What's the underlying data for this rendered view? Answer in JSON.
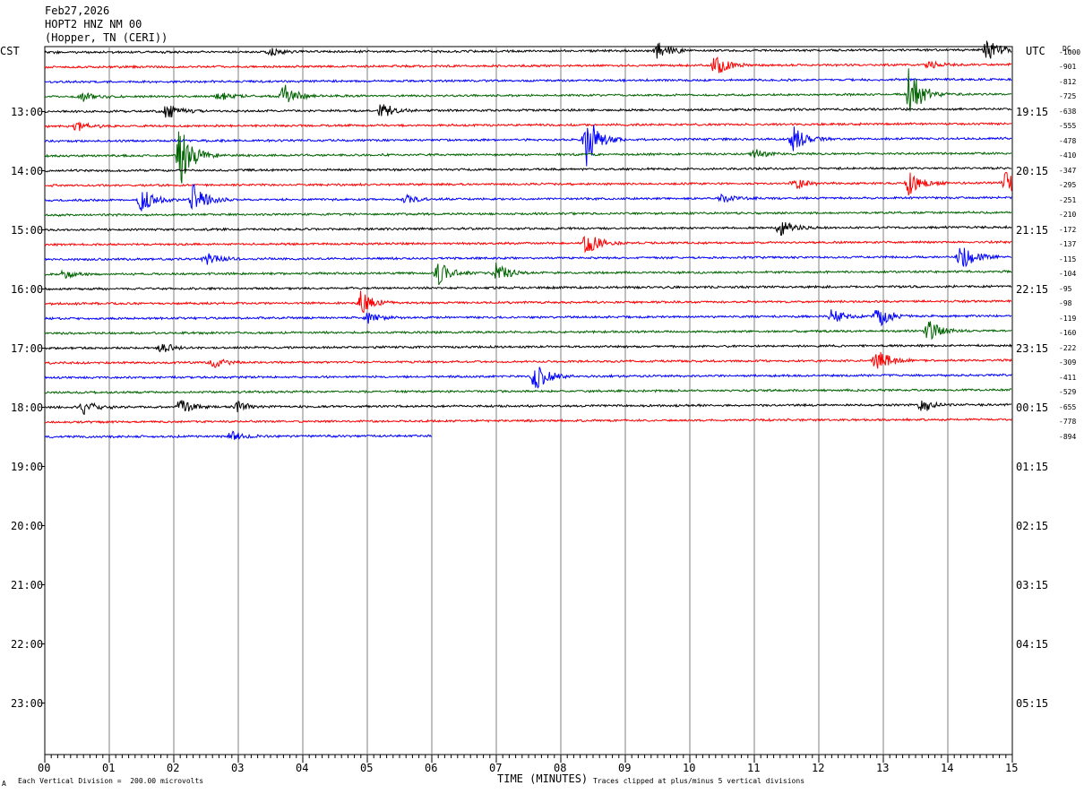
{
  "header": {
    "date": "Feb27,2026",
    "station": "HOPT2 HNZ NM 00",
    "location": "(Hopper, TN (CERI))"
  },
  "axes": {
    "left_label": "CST",
    "right_label": "UTC",
    "dc_label": "DC",
    "x_title": "TIME (MINUTES)",
    "x_ticks": [
      "00",
      "01",
      "02",
      "03",
      "04",
      "05",
      "06",
      "07",
      "08",
      "09",
      "10",
      "11",
      "12",
      "13",
      "14",
      "15"
    ],
    "left_hours": [
      "13:00",
      "14:00",
      "15:00",
      "16:00",
      "17:00",
      "18:00",
      "19:00",
      "20:00",
      "21:00",
      "22:00",
      "23:00"
    ],
    "right_hours": [
      "19:15",
      "20:15",
      "21:15",
      "22:15",
      "23:15",
      "00:15",
      "01:15",
      "02:15",
      "03:15",
      "04:15",
      "05:15"
    ]
  },
  "footer": {
    "scale_note": "Each Vertical Division =  200.00 microvolts",
    "clip_note": "Traces clipped at plus/minus 5 vertical divisions",
    "mark": "A"
  },
  "colors": {
    "cycle": [
      "#000000",
      "#ff0000",
      "#0000ff",
      "#006400"
    ],
    "grid": "#808080"
  },
  "chart_data": {
    "type": "line",
    "x_range": [
      0,
      15
    ],
    "trace_count": 27,
    "last_trace_end_minute": 6.0,
    "dc_offsets": [
      "-1000",
      "-901",
      "-812",
      "-725",
      "-638",
      "-555",
      "-478",
      "-410",
      "-347",
      "-295",
      "-251",
      "-210",
      "-172",
      "-137",
      "-115",
      "-104",
      "-95",
      "-98",
      "-119",
      "-160",
      "-222",
      "-309",
      "-411",
      "-529",
      "-655",
      "-778",
      "-894"
    ],
    "events": [
      {
        "trace": 0,
        "minute": 3.5,
        "amp": 0.3
      },
      {
        "trace": 0,
        "minute": 9.5,
        "amp": 0.8
      },
      {
        "trace": 0,
        "minute": 14.6,
        "amp": 1.0
      },
      {
        "trace": 1,
        "minute": 10.4,
        "amp": 0.9
      },
      {
        "trace": 1,
        "minute": 13.7,
        "amp": 0.3
      },
      {
        "trace": 3,
        "minute": 0.6,
        "amp": 0.3
      },
      {
        "trace": 3,
        "minute": 2.7,
        "amp": 0.3
      },
      {
        "trace": 3,
        "minute": 3.7,
        "amp": 1.0
      },
      {
        "trace": 3,
        "minute": 13.4,
        "amp": 2.2
      },
      {
        "trace": 4,
        "minute": 1.9,
        "amp": 0.6
      },
      {
        "trace": 4,
        "minute": 5.2,
        "amp": 0.7
      },
      {
        "trace": 5,
        "minute": 0.5,
        "amp": 0.4
      },
      {
        "trace": 6,
        "minute": 8.4,
        "amp": 2.0
      },
      {
        "trace": 6,
        "minute": 11.6,
        "amp": 1.0
      },
      {
        "trace": 7,
        "minute": 2.1,
        "amp": 2.5
      },
      {
        "trace": 7,
        "minute": 11.0,
        "amp": 0.4
      },
      {
        "trace": 9,
        "minute": 11.6,
        "amp": 0.5
      },
      {
        "trace": 9,
        "minute": 13.4,
        "amp": 1.0
      },
      {
        "trace": 9,
        "minute": 14.9,
        "amp": 1.0
      },
      {
        "trace": 10,
        "minute": 1.5,
        "amp": 0.9
      },
      {
        "trace": 10,
        "minute": 2.3,
        "amp": 1.2
      },
      {
        "trace": 10,
        "minute": 5.6,
        "amp": 0.3
      },
      {
        "trace": 10,
        "minute": 10.5,
        "amp": 0.3
      },
      {
        "trace": 12,
        "minute": 11.4,
        "amp": 0.6
      },
      {
        "trace": 13,
        "minute": 8.4,
        "amp": 0.9
      },
      {
        "trace": 14,
        "minute": 2.5,
        "amp": 0.5
      },
      {
        "trace": 14,
        "minute": 14.2,
        "amp": 1.1
      },
      {
        "trace": 15,
        "minute": 0.3,
        "amp": 0.3
      },
      {
        "trace": 15,
        "minute": 6.1,
        "amp": 0.9
      },
      {
        "trace": 15,
        "minute": 7.0,
        "amp": 0.8
      },
      {
        "trace": 17,
        "minute": 4.9,
        "amp": 0.9
      },
      {
        "trace": 18,
        "minute": 5.0,
        "amp": 0.4
      },
      {
        "trace": 18,
        "minute": 12.2,
        "amp": 0.5
      },
      {
        "trace": 18,
        "minute": 12.9,
        "amp": 1.0
      },
      {
        "trace": 19,
        "minute": 13.7,
        "amp": 0.8
      },
      {
        "trace": 20,
        "minute": 1.8,
        "amp": 0.4
      },
      {
        "trace": 21,
        "minute": 2.6,
        "amp": 0.4
      },
      {
        "trace": 21,
        "minute": 12.9,
        "amp": 1.0
      },
      {
        "trace": 22,
        "minute": 7.6,
        "amp": 1.2
      },
      {
        "trace": 24,
        "minute": 0.6,
        "amp": 0.5
      },
      {
        "trace": 24,
        "minute": 2.1,
        "amp": 0.6
      },
      {
        "trace": 24,
        "minute": 3.0,
        "amp": 0.4
      },
      {
        "trace": 24,
        "minute": 13.6,
        "amp": 0.6
      },
      {
        "trace": 26,
        "minute": 2.9,
        "amp": 0.4
      }
    ]
  }
}
